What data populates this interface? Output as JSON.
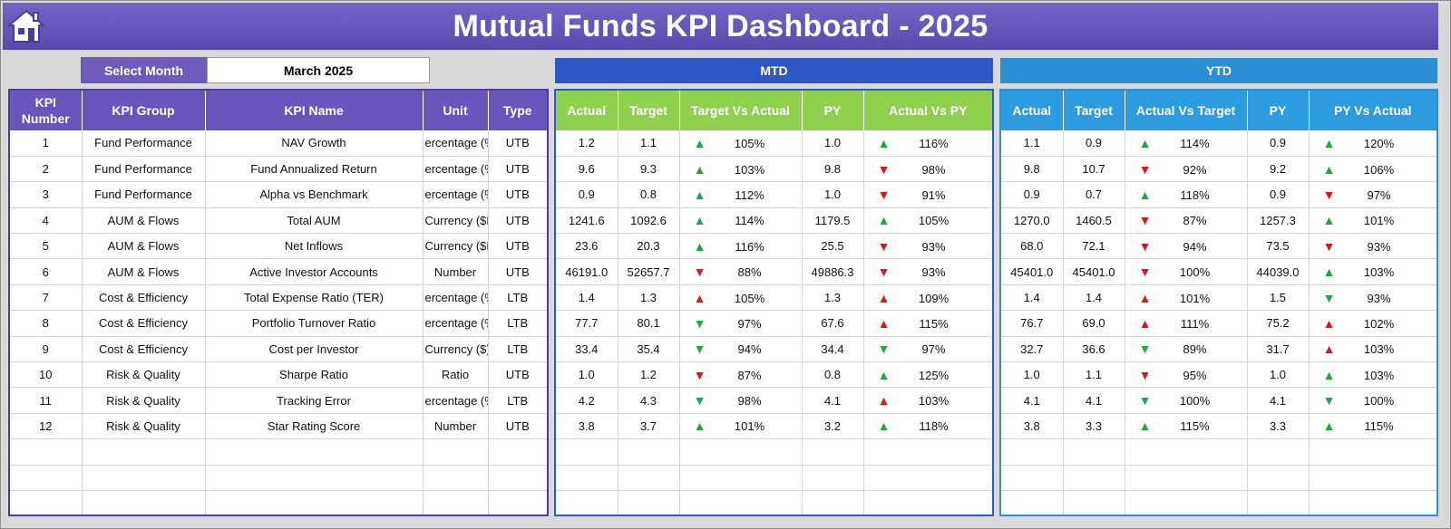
{
  "title": "Mutual Funds KPI Dashboard - 2025",
  "select_month": {
    "label": "Select Month",
    "value": "March 2025"
  },
  "bands": {
    "mtd": "MTD",
    "ytd": "YTD"
  },
  "kpi_headers": [
    "KPI Number",
    "KPI Group",
    "KPI Name",
    "Unit",
    "Type"
  ],
  "mtd_headers": [
    "Actual",
    "Target",
    "Target Vs Actual",
    "PY",
    "Actual Vs PY"
  ],
  "ytd_headers": [
    "Actual",
    "Target",
    "Actual Vs Target",
    "PY",
    "PY Vs Actual"
  ],
  "colors": {
    "title_bg": "#6656bb",
    "kpi_header": "#6a55bd",
    "mtd_band": "#2e59c4",
    "mtd_header": "#8fd14f",
    "ytd_band": "#2c8fd6",
    "ytd_header": "#2c9be0",
    "good": "#1fa648",
    "bad": "#e0141d"
  },
  "rows": [
    {
      "num": "1",
      "group": "Fund Performance",
      "name": "NAV Growth",
      "unit": "ercentage (%",
      "type": "UTB",
      "mtd": {
        "actual": "1.2",
        "target": "1.1",
        "tva_arrow": "up-green",
        "tva": "105%",
        "py": "1.0",
        "avp_arrow": "up-green",
        "avp": "116%"
      },
      "ytd": {
        "actual": "1.1",
        "target": "0.9",
        "avt_arrow": "up-green",
        "avt": "114%",
        "py": "0.9",
        "pva_arrow": "up-green",
        "pva": "120%"
      }
    },
    {
      "num": "2",
      "group": "Fund Performance",
      "name": "Fund Annualized Return",
      "unit": "ercentage (%",
      "type": "UTB",
      "mtd": {
        "actual": "9.6",
        "target": "9.3",
        "tva_arrow": "up-green",
        "tva": "103%",
        "py": "9.8",
        "avp_arrow": "down-red",
        "avp": "98%"
      },
      "ytd": {
        "actual": "9.8",
        "target": "10.7",
        "avt_arrow": "down-red",
        "avt": "92%",
        "py": "9.2",
        "pva_arrow": "up-green",
        "pva": "106%"
      }
    },
    {
      "num": "3",
      "group": "Fund Performance",
      "name": "Alpha vs Benchmark",
      "unit": "ercentage (%",
      "type": "UTB",
      "mtd": {
        "actual": "0.9",
        "target": "0.8",
        "tva_arrow": "up-green",
        "tva": "112%",
        "py": "1.0",
        "avp_arrow": "down-red",
        "avp": "91%"
      },
      "ytd": {
        "actual": "0.9",
        "target": "0.7",
        "avt_arrow": "up-green",
        "avt": "118%",
        "py": "0.9",
        "pva_arrow": "down-red",
        "pva": "97%"
      }
    },
    {
      "num": "4",
      "group": "AUM & Flows",
      "name": "Total AUM",
      "unit": "Currency ($M",
      "type": "UTB",
      "mtd": {
        "actual": "1241.6",
        "target": "1092.6",
        "tva_arrow": "up-green",
        "tva": "114%",
        "py": "1179.5",
        "avp_arrow": "up-green",
        "avp": "105%"
      },
      "ytd": {
        "actual": "1270.0",
        "target": "1460.5",
        "avt_arrow": "down-red",
        "avt": "87%",
        "py": "1257.3",
        "pva_arrow": "up-green",
        "pva": "101%"
      }
    },
    {
      "num": "5",
      "group": "AUM & Flows",
      "name": "Net Inflows",
      "unit": "Currency ($M",
      "type": "UTB",
      "mtd": {
        "actual": "23.6",
        "target": "20.3",
        "tva_arrow": "up-green",
        "tva": "116%",
        "py": "25.5",
        "avp_arrow": "down-red",
        "avp": "93%"
      },
      "ytd": {
        "actual": "68.0",
        "target": "72.1",
        "avt_arrow": "down-red",
        "avt": "94%",
        "py": "73.5",
        "pva_arrow": "down-red",
        "pva": "93%"
      }
    },
    {
      "num": "6",
      "group": "AUM & Flows",
      "name": "Active Investor Accounts",
      "unit": "Number",
      "type": "UTB",
      "mtd": {
        "actual": "46191.0",
        "target": "52657.7",
        "tva_arrow": "down-red",
        "tva": "88%",
        "py": "49886.3",
        "avp_arrow": "down-red",
        "avp": "93%"
      },
      "ytd": {
        "actual": "45401.0",
        "target": "45401.0",
        "avt_arrow": "down-red",
        "avt": "100%",
        "py": "44039.0",
        "pva_arrow": "up-green",
        "pva": "103%"
      }
    },
    {
      "num": "7",
      "group": "Cost & Efficiency",
      "name": "Total Expense Ratio (TER)",
      "unit": "ercentage (%",
      "type": "LTB",
      "mtd": {
        "actual": "1.4",
        "target": "1.3",
        "tva_arrow": "up-red",
        "tva": "105%",
        "py": "1.3",
        "avp_arrow": "up-red",
        "avp": "109%"
      },
      "ytd": {
        "actual": "1.4",
        "target": "1.4",
        "avt_arrow": "up-red",
        "avt": "101%",
        "py": "1.5",
        "pva_arrow": "down-green",
        "pva": "93%"
      }
    },
    {
      "num": "8",
      "group": "Cost & Efficiency",
      "name": "Portfolio Turnover Ratio",
      "unit": "ercentage (%",
      "type": "LTB",
      "mtd": {
        "actual": "77.7",
        "target": "80.1",
        "tva_arrow": "down-green",
        "tva": "97%",
        "py": "67.6",
        "avp_arrow": "up-red",
        "avp": "115%"
      },
      "ytd": {
        "actual": "76.7",
        "target": "69.0",
        "avt_arrow": "up-red",
        "avt": "111%",
        "py": "75.2",
        "pva_arrow": "up-red",
        "pva": "102%"
      }
    },
    {
      "num": "9",
      "group": "Cost & Efficiency",
      "name": "Cost per Investor",
      "unit": "Currency ($)",
      "type": "LTB",
      "mtd": {
        "actual": "33.4",
        "target": "35.4",
        "tva_arrow": "down-green",
        "tva": "94%",
        "py": "34.4",
        "avp_arrow": "down-green",
        "avp": "97%"
      },
      "ytd": {
        "actual": "32.7",
        "target": "36.6",
        "avt_arrow": "down-green",
        "avt": "89%",
        "py": "31.7",
        "pva_arrow": "up-red",
        "pva": "103%"
      }
    },
    {
      "num": "10",
      "group": "Risk & Quality",
      "name": "Sharpe Ratio",
      "unit": "Ratio",
      "type": "UTB",
      "mtd": {
        "actual": "1.0",
        "target": "1.2",
        "tva_arrow": "down-red",
        "tva": "87%",
        "py": "0.8",
        "avp_arrow": "up-green",
        "avp": "125%"
      },
      "ytd": {
        "actual": "1.0",
        "target": "1.1",
        "avt_arrow": "down-red",
        "avt": "95%",
        "py": "1.0",
        "pva_arrow": "up-green",
        "pva": "103%"
      }
    },
    {
      "num": "11",
      "group": "Risk & Quality",
      "name": "Tracking Error",
      "unit": "ercentage (%",
      "type": "LTB",
      "mtd": {
        "actual": "4.2",
        "target": "4.3",
        "tva_arrow": "down-green",
        "tva": "98%",
        "py": "4.1",
        "avp_arrow": "up-red",
        "avp": "103%"
      },
      "ytd": {
        "actual": "4.1",
        "target": "4.1",
        "avt_arrow": "down-green",
        "avt": "100%",
        "py": "4.1",
        "pva_arrow": "down-green",
        "pva": "100%"
      }
    },
    {
      "num": "12",
      "group": "Risk & Quality",
      "name": "Star Rating Score",
      "unit": "Number",
      "type": "UTB",
      "mtd": {
        "actual": "3.8",
        "target": "3.7",
        "tva_arrow": "up-green",
        "tva": "101%",
        "py": "3.2",
        "avp_arrow": "up-green",
        "avp": "118%"
      },
      "ytd": {
        "actual": "3.8",
        "target": "3.3",
        "avt_arrow": "up-green",
        "avt": "115%",
        "py": "3.3",
        "pva_arrow": "up-green",
        "pva": "115%"
      }
    }
  ],
  "empty_rows": 3
}
